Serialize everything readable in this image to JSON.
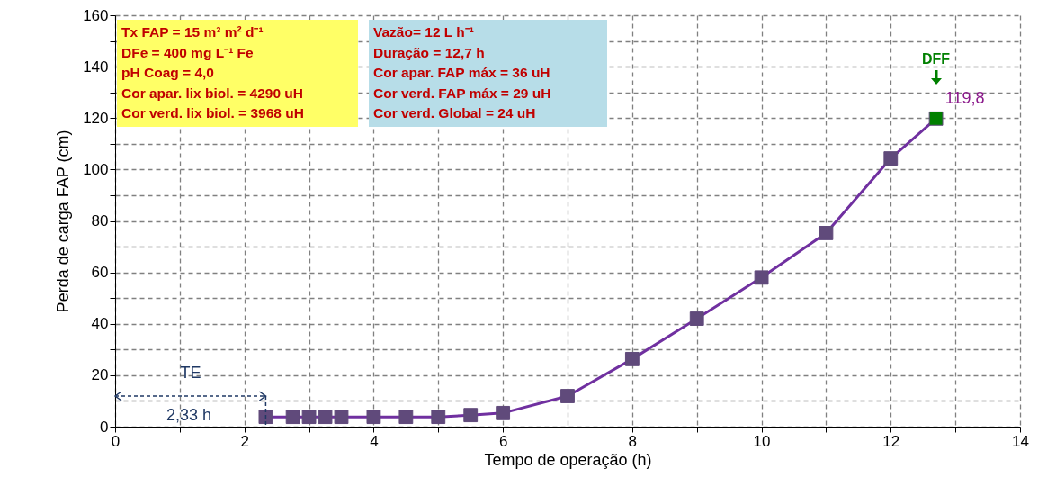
{
  "chart_data": {
    "type": "line",
    "xlabel": "Tempo de operação (h)",
    "ylabel": "Perda de carga FAP (cm)",
    "x": [
      2.33,
      2.75,
      3,
      3.25,
      3.5,
      4,
      4.5,
      5,
      5.5,
      6,
      7,
      8,
      9,
      10,
      11,
      12,
      12.7
    ],
    "series": [
      {
        "color": "#7030a0",
        "values": [
          3.8,
          3.8,
          3.8,
          3.8,
          3.8,
          3.8,
          3.8,
          3.8,
          4.5,
          5.3,
          11.9,
          26.3,
          42,
          58,
          75.3,
          104.3,
          119.8
        ],
        "colors": [
          "#604a7b",
          "#604a7b",
          "#604a7b",
          "#604a7b",
          "#604a7b",
          "#604a7b",
          "#604a7b",
          "#604a7b",
          "#604a7b",
          "#604a7b",
          "#604a7b",
          "#604a7b",
          "#604a7b",
          "#604a7b",
          "#604a7b",
          "#604a7b",
          "#008000"
        ],
        "value_labels": [
          null,
          null,
          null,
          null,
          null,
          null,
          null,
          null,
          null,
          null,
          null,
          null,
          null,
          null,
          null,
          null,
          "119,8"
        ]
      }
    ],
    "xlim": [
      0,
      14
    ],
    "ylim": [
      0,
      160
    ],
    "xticks": [
      0,
      {
        "value": 1,
        "label": null
      },
      2,
      {
        "value": 3,
        "label": null
      },
      4,
      {
        "value": 5,
        "label": null
      },
      6,
      {
        "value": 7,
        "label": null
      },
      8,
      {
        "value": 9,
        "label": null
      },
      10,
      {
        "value": 11,
        "label": null
      },
      12,
      {
        "value": 13,
        "label": null
      },
      14
    ],
    "yticks": [
      0,
      {
        "value": 10,
        "label": null
      },
      20,
      {
        "value": 30,
        "label": null
      },
      40,
      {
        "value": 50,
        "label": null
      },
      60,
      {
        "value": 70,
        "label": null
      },
      80,
      {
        "value": 90,
        "label": null
      },
      100,
      {
        "value": 110,
        "label": null
      },
      120,
      {
        "value": 130,
        "label": null
      },
      140,
      {
        "value": 150,
        "label": null
      },
      160
    ],
    "grid": true,
    "marker": "square",
    "line_style": "solid",
    "annotations": [
      "TE",
      "2,33 h",
      "DFF",
      "Tx FAP = 15 m³ m² d⁻¹\nDFe = 400 mg L⁻¹ Fe\npH Coag = 4,0\nCor apar. lix biol. = 4290 uH\nCor verd. lix biol. = 3968 uH",
      "Vazão= 12 L h⁻¹\nDuração = 12,7 h\nCor apar. FAP máx = 36 uH\nCor verd. FAP máx = 29 uH\nCor verd. Global = 24 uH"
    ]
  }
}
